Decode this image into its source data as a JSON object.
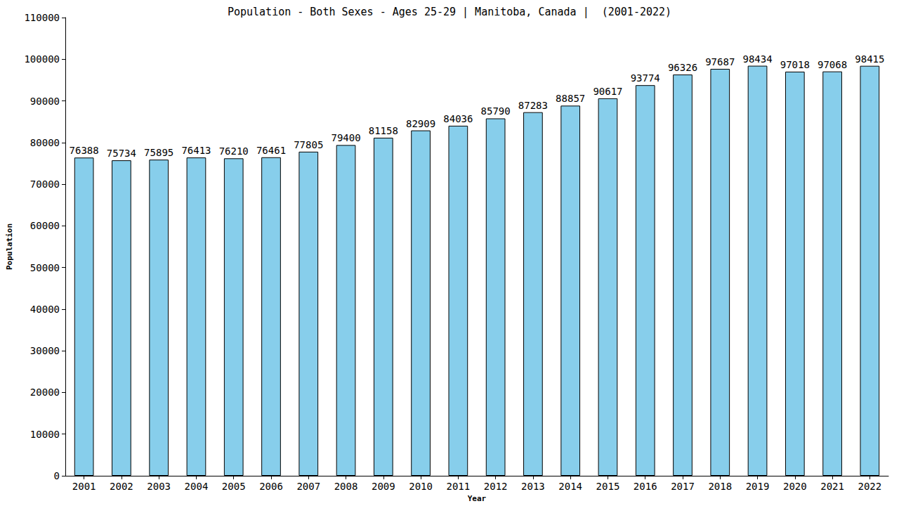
{
  "chart_data": {
    "type": "bar",
    "title": "Population - Both Sexes - Ages 25-29 | Manitoba, Canada |  (2001-2022)",
    "x_label": "Year",
    "y_label": "Population",
    "categories": [
      "2001",
      "2002",
      "2003",
      "2004",
      "2005",
      "2006",
      "2007",
      "2008",
      "2009",
      "2010",
      "2011",
      "2012",
      "2013",
      "2014",
      "2015",
      "2016",
      "2017",
      "2018",
      "2019",
      "2020",
      "2021",
      "2022"
    ],
    "values": [
      76388,
      75734,
      75895,
      76413,
      76210,
      76461,
      77805,
      79400,
      81158,
      82909,
      84036,
      85790,
      87283,
      88857,
      90617,
      93774,
      96326,
      97687,
      98434,
      97018,
      97068,
      98415
    ],
    "color": "#87ceeb",
    "ylim": [
      0,
      110000
    ],
    "yticks": [
      0,
      10000,
      20000,
      30000,
      40000,
      50000,
      60000,
      70000,
      80000,
      90000,
      100000,
      110000
    ],
    "grid": false,
    "data_labels": true
  }
}
